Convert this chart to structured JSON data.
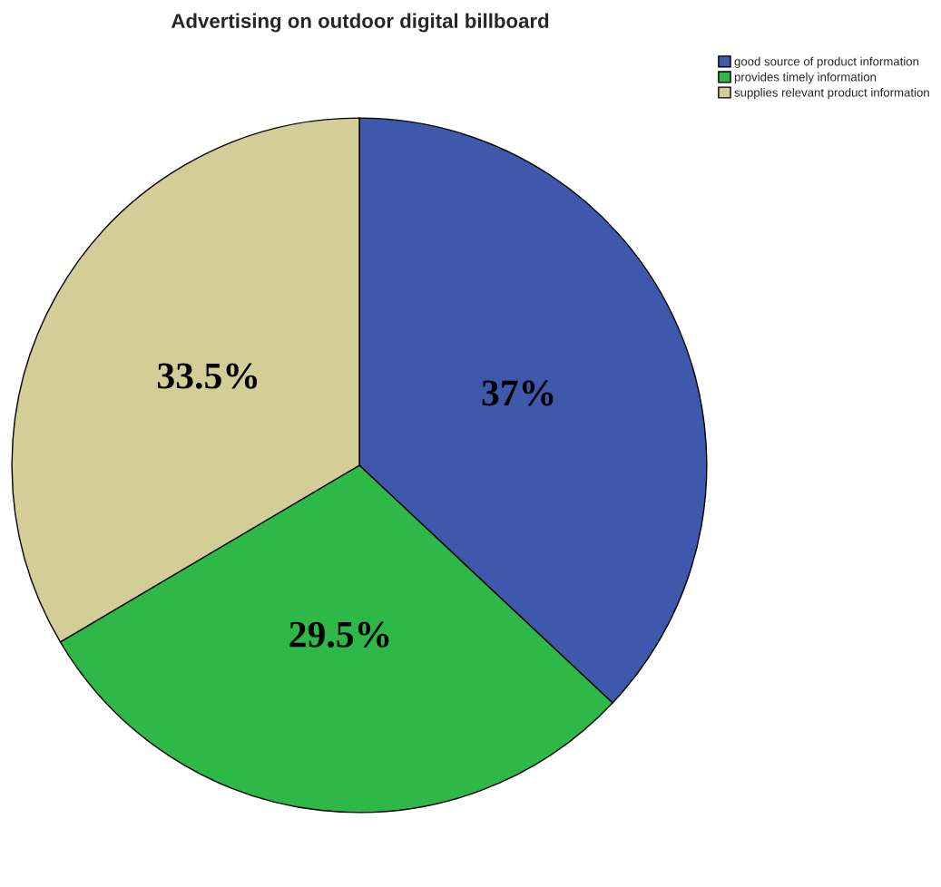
{
  "chart_data": {
    "type": "pie",
    "title": "Advertising on outdoor digital billboard",
    "categories": [
      "good source of product information",
      "provides timely information",
      "supplies relevant product information"
    ],
    "values": [
      37,
      29.5,
      33.5
    ],
    "colors": [
      "#3e58ac",
      "#2eb848",
      "#d3ce97"
    ],
    "value_labels": [
      "37%",
      "29.5%",
      "33.5%"
    ],
    "legend": "top right"
  }
}
